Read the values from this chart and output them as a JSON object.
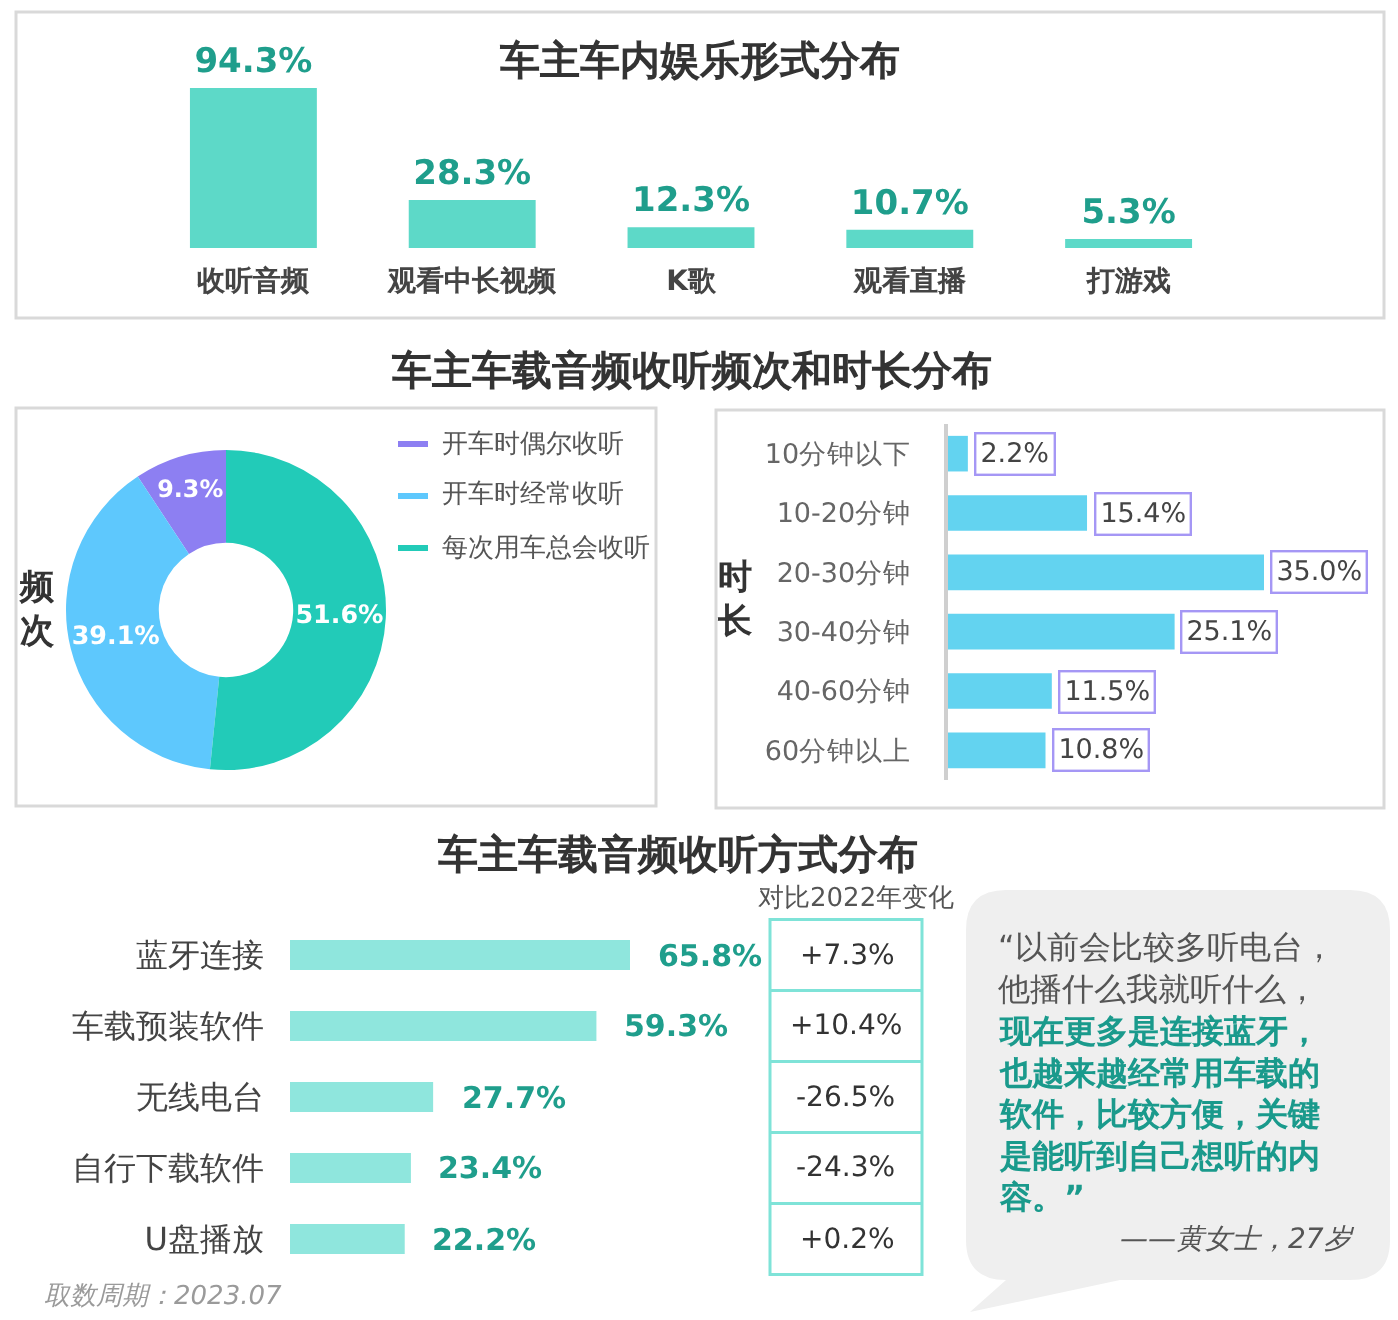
{
  "chart_data": [
    {
      "type": "bar",
      "title": "车主车内娱乐形式分布",
      "categories": [
        "收听音频",
        "观看中长视频",
        "K歌",
        "观看直播",
        "打游戏"
      ],
      "values": [
        94.3,
        28.3,
        12.3,
        10.7,
        5.3
      ],
      "value_labels": [
        "94.3%",
        "28.3%",
        "12.3%",
        "10.7%",
        "5.3%"
      ],
      "color": "#5dd9c8",
      "tick_labels": "x"
    },
    {
      "type": "donut",
      "title": "车主车载音频收听频次和时长分布",
      "ylabel": "频次",
      "categories": [
        "开车时偶尔收听",
        "开车时经常收听",
        "每次用车总会收听"
      ],
      "values": [
        9.3,
        39.1,
        51.6
      ],
      "value_labels": [
        "9.3%",
        "39.1%",
        "51.6%"
      ],
      "colors": [
        "#8d7ff2",
        "#5ec8fd",
        "#22cbb8"
      ],
      "legend": "top right"
    },
    {
      "type": "bar",
      "orientation": "horizontal",
      "ylabel": "时长",
      "categories": [
        "10分钟以下",
        "10-20分钟",
        "20-30分钟",
        "30-40分钟",
        "40-60分钟",
        "60分钟以上"
      ],
      "values": [
        2.2,
        15.4,
        35.0,
        25.1,
        11.5,
        10.8
      ],
      "value_labels": [
        "2.2%",
        "15.4%",
        "35.0%",
        "25.1%",
        "11.5%",
        "10.8%"
      ],
      "color": "#63d3f0",
      "tick_labels": "y"
    },
    {
      "type": "bar",
      "orientation": "horizontal",
      "title": "车主车载音频收听方式分布",
      "categories": [
        "蓝牙连接",
        "车载预装软件",
        "无线电台",
        "自行下载软件",
        "U盘播放"
      ],
      "values": [
        65.8,
        59.3,
        27.7,
        23.4,
        22.2
      ],
      "value_labels": [
        "65.8%",
        "59.3%",
        "27.7%",
        "23.4%",
        "22.2%"
      ],
      "color": "#8fe6dd",
      "tick_labels": "y",
      "annotations": [
        "对比2022年变化",
        "+7.3%",
        "+10.4%",
        "-26.5%",
        "-24.3%",
        "+0.2%",
        "取数周期：2023.07"
      ]
    },
    {
      "type": "other",
      "annotations": [
        "“以前会比较多听电台，他播什么我就听什么，",
        "现在更多是连接蓝牙，也越来越经常用车载的软件，比较方便，关键是能听到自己想听的内容。”",
        "——黄女士，27岁"
      ]
    }
  ]
}
